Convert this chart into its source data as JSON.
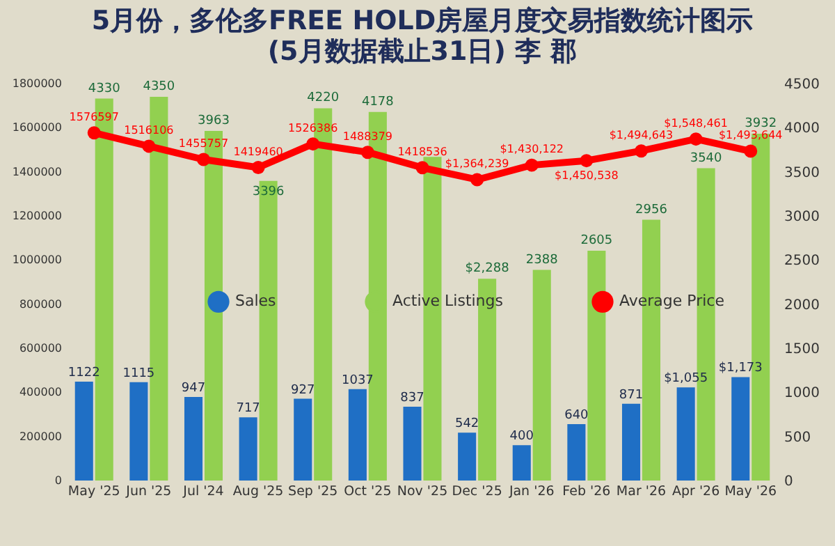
{
  "chart_data": {
    "type": "bar",
    "title": "5月份，多伦多FREE HOLD房屋月度交易指数统计图示",
    "subtitle": "(5月数据截止31日) 李 郡",
    "categories": [
      "May '25",
      "Jun '25",
      "Jul '24",
      "Aug '25",
      "Sep '25",
      "Oct '25",
      "Nov '25",
      "Dec '25",
      "Jan '26",
      "Feb '26",
      "Mar '26",
      "Apr '26",
      "May '26"
    ],
    "series": [
      {
        "name": "Sales",
        "type": "bar",
        "axis": "y2",
        "color": "#1f6fc5",
        "values": [
          1122,
          1115,
          947,
          717,
          927,
          1037,
          837,
          542,
          400,
          640,
          871,
          1055,
          1173
        ],
        "value_labels": [
          "1122",
          "1115",
          "947",
          "717",
          "927",
          "1037",
          "837",
          "542",
          "400",
          "640",
          "871",
          "$1,055",
          "$1,173"
        ]
      },
      {
        "name": "Active Listings",
        "type": "bar",
        "axis": "y2",
        "color": "#92d050",
        "values": [
          4330,
          4350,
          3963,
          3396,
          4220,
          4178,
          3670,
          2288,
          2388,
          2605,
          2956,
          3540,
          3932
        ],
        "value_labels": [
          "4330",
          "4350",
          "3963",
          "3396",
          "4220",
          "4178",
          null,
          "$2,288",
          "2388",
          "2605",
          "2956",
          "3540",
          "3932"
        ]
      },
      {
        "name": "Average Price",
        "type": "line",
        "color": "#ff0000",
        "values": [
          1576597,
          1516106,
          1455757,
          1419460,
          1526386,
          1488379,
          1418536,
          1364239,
          1430122,
          1450538,
          1494643,
          1548461,
          1493644
        ],
        "value_labels": [
          "1576597",
          "1516106",
          "1455757",
          "1419460",
          "1526386",
          "1488379",
          "1418536",
          "$1,364,239",
          "$1,430,122",
          "$1,450,538",
          "$1,494,643",
          "$1,548,461",
          "$1,493,644"
        ]
      }
    ],
    "ylim": [
      0,
      1800000
    ],
    "yticks": [
      0,
      200000,
      400000,
      600000,
      800000,
      1000000,
      1200000,
      1400000,
      1600000,
      1800000
    ],
    "y2lim": [
      0,
      4500
    ],
    "y2ticks": [
      0,
      500,
      1000,
      1500,
      2000,
      2500,
      3000,
      3500,
      4000,
      4500
    ],
    "legend": "center",
    "marker": "circle",
    "grid": false
  }
}
